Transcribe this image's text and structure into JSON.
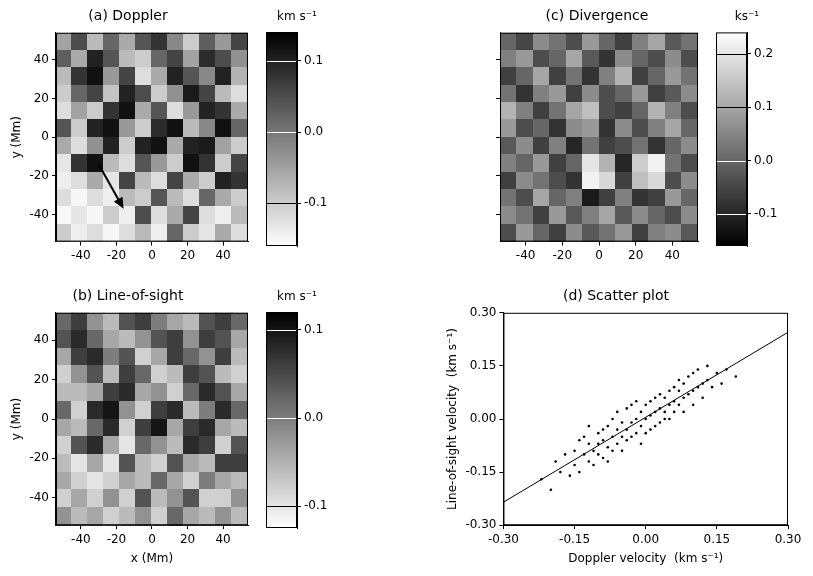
{
  "chart_data": [
    {
      "type": "heatmap",
      "title": "(a) Doppler",
      "ylabel": "y (Mm)",
      "xlim": [
        -54,
        54
      ],
      "ylim": [
        -54,
        54
      ],
      "xticks": [
        -40,
        -20,
        0,
        20,
        40
      ],
      "yticks": [
        -40,
        -20,
        0,
        20,
        40
      ],
      "cells": [
        [
          -0.05,
          0.05,
          -0.08,
          0.02,
          -0.06,
          0.04,
          0.08,
          -0.02,
          -0.1,
          0.03,
          -0.04,
          0.06
        ],
        [
          0.03,
          -0.06,
          0.1,
          0.04,
          -0.08,
          -0.1,
          0.02,
          0.06,
          -0.05,
          0.09,
          0.05,
          -0.03
        ],
        [
          -0.08,
          0.08,
          0.12,
          -0.04,
          0.06,
          -0.12,
          -0.06,
          0.1,
          0.04,
          -0.02,
          0.1,
          -0.07
        ],
        [
          -0.1,
          0.02,
          0.06,
          -0.09,
          0.1,
          0.05,
          -0.1,
          -0.03,
          0.11,
          0.06,
          -0.08,
          -0.12
        ],
        [
          -0.12,
          -0.05,
          -0.1,
          0.08,
          0.12,
          -0.06,
          0.04,
          -0.12,
          -0.04,
          0.1,
          0.08,
          -0.06
        ],
        [
          0.04,
          -0.1,
          0.1,
          0.12,
          -0.04,
          -0.1,
          0.09,
          0.12,
          -0.08,
          -0.02,
          0.12,
          0.02
        ],
        [
          -0.06,
          -0.12,
          -0.03,
          0.1,
          -0.1,
          0.1,
          0.12,
          -0.06,
          0.1,
          0.11,
          -0.05,
          -0.1
        ],
        [
          -0.13,
          0.08,
          0.12,
          -0.08,
          -0.12,
          0.04,
          -0.04,
          -0.1,
          0.12,
          0.08,
          -0.1,
          0.06
        ],
        [
          -0.14,
          -0.12,
          -0.06,
          -0.13,
          0.06,
          -0.08,
          -0.12,
          0.06,
          -0.06,
          -0.1,
          0.1,
          0.08
        ],
        [
          -0.12,
          -0.15,
          -0.12,
          -0.14,
          -0.08,
          -0.1,
          0.04,
          -0.08,
          -0.12,
          0.02,
          -0.06,
          -0.1
        ],
        [
          -0.15,
          -0.13,
          -0.15,
          -0.1,
          -0.14,
          0.05,
          -0.12,
          -0.06,
          0.06,
          -0.12,
          -0.14,
          -0.08
        ],
        [
          -0.1,
          -0.14,
          -0.12,
          -0.15,
          -0.12,
          -0.08,
          -0.14,
          0.02,
          -0.1,
          -0.13,
          -0.06,
          -0.12
        ]
      ],
      "colorbar": {
        "label": "km s⁻¹",
        "range": [
          -0.16,
          0.14
        ],
        "ticks": [
          0.1,
          {
            "value": 0,
            "label": "0.0"
          },
          -0.1
        ],
        "colors": [
          "#ffffff",
          "#000000"
        ]
      },
      "arrow": {
        "from": [
          -30,
          -14
        ],
        "to": [
          -16,
          -37
        ]
      }
    },
    {
      "type": "heatmap",
      "title": "(b) Line-of-sight",
      "xlabel": "x (Mm)",
      "ylabel": "y (Mm)",
      "xlim": [
        -54,
        54
      ],
      "ylim": [
        -54,
        54
      ],
      "xticks": [
        -40,
        -20,
        0,
        20,
        40
      ],
      "yticks": [
        -40,
        -20,
        0,
        20,
        40
      ],
      "cells": [
        [
          0.02,
          0.06,
          -0.02,
          -0.06,
          0.04,
          0.06,
          0.0,
          -0.04,
          -0.06,
          0.04,
          0.06,
          0.02
        ],
        [
          0.04,
          0.08,
          0.02,
          -0.04,
          -0.06,
          -0.02,
          0.04,
          0.06,
          -0.02,
          0.06,
          0.04,
          -0.04
        ],
        [
          -0.04,
          0.06,
          0.08,
          0.0,
          0.04,
          -0.08,
          -0.04,
          0.06,
          0.02,
          -0.02,
          0.06,
          -0.06
        ],
        [
          -0.08,
          -0.02,
          0.04,
          -0.06,
          0.06,
          0.02,
          -0.08,
          -0.06,
          0.06,
          0.04,
          -0.06,
          -0.08
        ],
        [
          -0.06,
          -0.06,
          -0.04,
          0.06,
          0.08,
          -0.04,
          -0.02,
          -0.08,
          0.02,
          0.08,
          0.04,
          -0.04
        ],
        [
          0.02,
          -0.08,
          0.08,
          0.1,
          -0.02,
          -0.08,
          0.06,
          0.08,
          -0.06,
          0.0,
          0.08,
          0.02
        ],
        [
          -0.04,
          -0.06,
          0.02,
          0.08,
          -0.08,
          0.06,
          0.1,
          -0.04,
          0.06,
          0.08,
          -0.04,
          -0.06
        ],
        [
          -0.08,
          0.04,
          0.08,
          -0.04,
          -0.1,
          0.02,
          -0.02,
          -0.06,
          0.08,
          0.06,
          -0.08,
          0.04
        ],
        [
          -0.06,
          -0.1,
          -0.04,
          -0.1,
          0.04,
          -0.06,
          -0.08,
          0.04,
          -0.04,
          -0.06,
          0.06,
          0.06
        ],
        [
          -0.04,
          -0.08,
          -0.1,
          -0.08,
          -0.04,
          -0.06,
          0.02,
          -0.04,
          -0.08,
          0.0,
          -0.04,
          -0.06
        ],
        [
          -0.08,
          -0.04,
          -0.08,
          -0.02,
          -0.08,
          0.04,
          -0.06,
          -0.02,
          0.04,
          -0.08,
          -0.08,
          -0.02
        ],
        [
          -0.02,
          -0.06,
          -0.04,
          -0.08,
          -0.06,
          -0.02,
          -0.08,
          0.02,
          -0.04,
          -0.06,
          -0.02,
          -0.06
        ]
      ],
      "colorbar": {
        "label": "km s⁻¹",
        "range": [
          -0.125,
          0.12
        ],
        "ticks": [
          0.1,
          {
            "value": 0,
            "label": "0.0"
          },
          -0.1
        ],
        "colors": [
          "#ffffff",
          "#000000"
        ]
      }
    },
    {
      "type": "heatmap",
      "title": "(c) Divergence",
      "tick_labels": "x",
      "xlim": [
        -54,
        54
      ],
      "ylim": [
        -54,
        54
      ],
      "xticks": [
        -40,
        -20,
        0,
        20,
        40
      ],
      "yticks": [
        -40,
        -20,
        0,
        20,
        40
      ],
      "cells": [
        [
          0.0,
          -0.05,
          0.06,
          0.02,
          -0.04,
          0.08,
          0.0,
          -0.06,
          0.04,
          0.1,
          -0.02,
          0.02
        ],
        [
          0.04,
          0.08,
          -0.04,
          0.0,
          0.1,
          -0.02,
          -0.08,
          0.06,
          0.0,
          -0.04,
          0.06,
          -0.04
        ],
        [
          -0.06,
          0.0,
          0.1,
          -0.06,
          0.02,
          -0.08,
          0.04,
          0.12,
          -0.06,
          0.0,
          0.08,
          0.02
        ],
        [
          0.02,
          -0.08,
          0.04,
          0.08,
          -0.06,
          0.06,
          -0.04,
          0.0,
          0.08,
          -0.06,
          -0.02,
          0.06
        ],
        [
          0.12,
          0.04,
          -0.06,
          0.02,
          0.1,
          0.14,
          -0.04,
          -0.06,
          0.0,
          0.12,
          0.04,
          -0.04
        ],
        [
          0.08,
          -0.04,
          0.0,
          -0.08,
          0.06,
          0.08,
          -0.08,
          0.06,
          -0.04,
          0.04,
          0.1,
          0.0
        ],
        [
          -0.02,
          0.06,
          -0.06,
          0.04,
          -0.1,
          0.02,
          -0.06,
          -0.04,
          0.02,
          -0.08,
          0.0,
          0.06
        ],
        [
          0.04,
          0.0,
          0.08,
          -0.06,
          0.0,
          0.2,
          0.12,
          -0.1,
          0.16,
          0.22,
          0.02,
          -0.04
        ],
        [
          -0.06,
          0.06,
          0.02,
          -0.04,
          -0.08,
          0.22,
          0.18,
          -0.06,
          0.14,
          0.18,
          -0.04,
          0.06
        ],
        [
          0.02,
          -0.04,
          0.1,
          0.0,
          0.04,
          -0.12,
          -0.06,
          0.04,
          -0.08,
          -0.06,
          0.08,
          0.0
        ],
        [
          0.06,
          0.02,
          -0.06,
          0.08,
          -0.02,
          0.04,
          0.1,
          -0.02,
          0.06,
          0.0,
          -0.04,
          0.06
        ],
        [
          -0.04,
          0.08,
          0.0,
          -0.06,
          0.06,
          -0.02,
          0.02,
          0.08,
          -0.06,
          0.04,
          0.06,
          -0.02
        ]
      ],
      "colorbar": {
        "label": "ks⁻¹",
        "range": [
          -0.16,
          0.24
        ],
        "ticks": [
          0.2,
          0.1,
          {
            "value": 0,
            "label": "0.0"
          },
          -0.1
        ],
        "colors": [
          "#000000",
          "#ffffff"
        ]
      }
    },
    {
      "type": "scatter",
      "title": "(d) Scatter plot",
      "xlabel": "Doppler velocity  (km s⁻¹)",
      "ylabel": "Line-of-sight velocity  (km s⁻¹)",
      "xlim": [
        -0.3,
        0.3
      ],
      "ylim": [
        -0.3,
        0.3
      ],
      "xticks": [
        {
          "value": -0.3,
          "label": "-0.30"
        },
        {
          "value": -0.15,
          "label": "-0.15"
        },
        {
          "value": 0,
          "label": "0.00"
        },
        {
          "value": 0.15,
          "label": "0.15"
        },
        {
          "value": 0.3,
          "label": "0.30"
        }
      ],
      "yticks": [
        {
          "value": -0.3,
          "label": "-0.30"
        },
        {
          "value": -0.15,
          "label": "-0.15"
        },
        {
          "value": 0,
          "label": "0.00"
        },
        {
          "value": 0.15,
          "label": "0.15"
        },
        {
          "value": 0.3,
          "label": "0.30"
        }
      ],
      "color": "#000000",
      "marker": "circle",
      "points": [
        [
          -0.22,
          -0.17
        ],
        [
          -0.2,
          -0.2
        ],
        [
          -0.19,
          -0.12
        ],
        [
          -0.18,
          -0.15
        ],
        [
          -0.17,
          -0.1
        ],
        [
          -0.16,
          -0.16
        ],
        [
          -0.15,
          -0.09
        ],
        [
          -0.15,
          -0.13
        ],
        [
          -0.14,
          -0.06
        ],
        [
          -0.14,
          -0.15
        ],
        [
          -0.13,
          -0.1
        ],
        [
          -0.13,
          -0.05
        ],
        [
          -0.12,
          -0.12
        ],
        [
          -0.12,
          -0.07
        ],
        [
          -0.12,
          -0.02
        ],
        [
          -0.11,
          -0.09
        ],
        [
          -0.11,
          -0.13
        ],
        [
          -0.1,
          -0.04
        ],
        [
          -0.1,
          -0.1
        ],
        [
          -0.1,
          -0.07
        ],
        [
          -0.09,
          -0.11
        ],
        [
          -0.09,
          -0.03
        ],
        [
          -0.09,
          -0.06
        ],
        [
          -0.08,
          -0.08
        ],
        [
          -0.08,
          -0.02
        ],
        [
          -0.08,
          -0.12
        ],
        [
          -0.07,
          -0.05
        ],
        [
          -0.07,
          0.0
        ],
        [
          -0.07,
          -0.09
        ],
        [
          -0.06,
          -0.03
        ],
        [
          -0.06,
          -0.07
        ],
        [
          -0.06,
          0.02
        ],
        [
          -0.05,
          -0.05
        ],
        [
          -0.05,
          -0.01
        ],
        [
          -0.05,
          -0.09
        ],
        [
          -0.04,
          -0.03
        ],
        [
          -0.04,
          0.03
        ],
        [
          -0.04,
          -0.06
        ],
        [
          -0.03,
          -0.01
        ],
        [
          -0.03,
          -0.05
        ],
        [
          -0.03,
          0.04
        ],
        [
          -0.02,
          0.0
        ],
        [
          -0.02,
          -0.04
        ],
        [
          -0.02,
          0.05
        ],
        [
          -0.01,
          -0.02
        ],
        [
          -0.01,
          0.02
        ],
        [
          -0.01,
          -0.07
        ],
        [
          0.0,
          0.0
        ],
        [
          0.0,
          0.04
        ],
        [
          0.0,
          -0.04
        ],
        [
          0.01,
          0.01
        ],
        [
          0.01,
          0.05
        ],
        [
          0.01,
          -0.03
        ],
        [
          0.02,
          0.02
        ],
        [
          0.02,
          0.06
        ],
        [
          0.02,
          -0.02
        ],
        [
          0.03,
          0.03
        ],
        [
          0.03,
          -0.01
        ],
        [
          0.03,
          0.07
        ],
        [
          0.04,
          0.02
        ],
        [
          0.04,
          0.06
        ],
        [
          0.04,
          0.0
        ],
        [
          0.05,
          0.04
        ],
        [
          0.05,
          0.08
        ],
        [
          0.05,
          0.0
        ],
        [
          0.06,
          0.05
        ],
        [
          0.06,
          0.09
        ],
        [
          0.06,
          0.02
        ],
        [
          0.07,
          0.04
        ],
        [
          0.07,
          0.08
        ],
        [
          0.07,
          0.11
        ],
        [
          0.08,
          0.06
        ],
        [
          0.08,
          0.1
        ],
        [
          0.08,
          0.02
        ],
        [
          0.09,
          0.07
        ],
        [
          0.09,
          0.12
        ],
        [
          0.1,
          0.08
        ],
        [
          0.1,
          0.04
        ],
        [
          0.1,
          0.13
        ],
        [
          0.11,
          0.09
        ],
        [
          0.11,
          0.14
        ],
        [
          0.12,
          0.1
        ],
        [
          0.12,
          0.06
        ],
        [
          0.13,
          0.11
        ],
        [
          0.13,
          0.15
        ],
        [
          0.14,
          0.09
        ],
        [
          0.15,
          0.13
        ],
        [
          0.16,
          0.1
        ],
        [
          0.17,
          0.14
        ],
        [
          0.19,
          0.12
        ]
      ],
      "fit_line": {
        "x": [
          -0.3,
          0.3
        ],
        "y": [
          -0.235,
          0.245
        ],
        "line_style": "solid"
      }
    }
  ]
}
